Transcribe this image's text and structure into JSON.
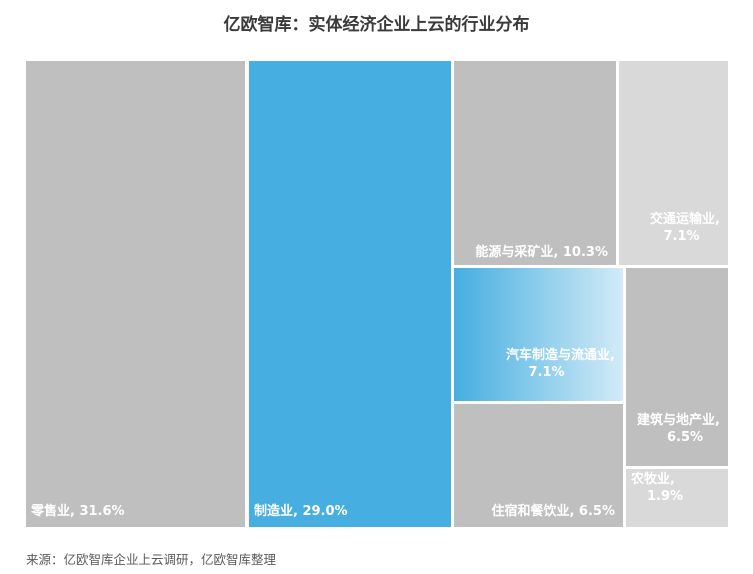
{
  "title": "亿欧智库：实体经济企业上云的行业分布",
  "source": "来源：亿欧智库企业上云调研，亿欧智库整理",
  "chart_data": {
    "type": "treemap",
    "title": "亿欧智库：实体经济企业上云的行业分布",
    "items": [
      {
        "name": "零售业",
        "value": 31.6,
        "label": "零售业, 31.6%",
        "color": "#bfbfbf",
        "highlight": false
      },
      {
        "name": "制造业",
        "value": 29.0,
        "label": "制造业, 29.0%",
        "color": "#46aee0",
        "highlight": true
      },
      {
        "name": "能源与采矿业",
        "value": 10.3,
        "label": "能源与采矿业, 10.3%",
        "color": "#bfbfbf",
        "highlight": false
      },
      {
        "name": "交通运输业",
        "value": 7.1,
        "label": "交通运输业,|7.1%",
        "color": "#d9d9d9",
        "highlight": false
      },
      {
        "name": "汽车制造与流通业",
        "value": 7.1,
        "label": "汽车制造与流通业,|7.1%",
        "color": "#5fb9e4",
        "highlight": true
      },
      {
        "name": "住宿和餐饮业",
        "value": 6.5,
        "label": "住宿和餐饮业, 6.5%",
        "color": "#bfbfbf",
        "highlight": false
      },
      {
        "name": "建筑与地产业",
        "value": 6.5,
        "label": "建筑与地产业,|6.5%",
        "color": "#bfbfbf",
        "highlight": false
      },
      {
        "name": "农牧业",
        "value": 1.9,
        "label": "农牧业,|1.9%",
        "color": "#d9d9d9",
        "highlight": false
      }
    ]
  }
}
